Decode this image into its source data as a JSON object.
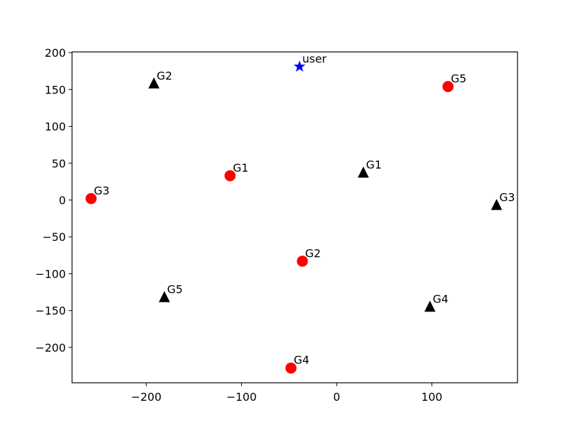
{
  "chart_data": {
    "type": "scatter",
    "xlim": [
      -278,
      190
    ],
    "ylim": [
      -248,
      201
    ],
    "xticks": [
      {
        "value": -200,
        "label": "−200"
      },
      {
        "value": -100,
        "label": "−100"
      },
      0,
      100
    ],
    "yticks": [
      200,
      150,
      100,
      50,
      0,
      {
        "value": -50,
        "label": "−50"
      },
      {
        "value": -100,
        "label": "−100"
      },
      {
        "value": -150,
        "label": "−150"
      },
      {
        "value": -200,
        "label": "−200"
      }
    ],
    "grid": false,
    "series": [
      {
        "color": "#ff0000",
        "marker": "circle",
        "x": [
          -112,
          -36,
          -258,
          -48,
          117
        ],
        "values": [
          33,
          -83,
          2,
          -228,
          154
        ],
        "labels": [
          "G1",
          "G2",
          "G3",
          "G4",
          "G5"
        ]
      },
      {
        "color": "#000000",
        "marker": "triangle",
        "x": [
          28,
          -192,
          168,
          98,
          -181
        ],
        "values": [
          37,
          158,
          -7,
          -145,
          -132
        ],
        "labels": [
          "G1",
          "G2",
          "G3",
          "G4",
          "G5"
        ]
      },
      {
        "color": "#0000ff",
        "marker": "star",
        "x": [
          -39
        ],
        "values": [
          181
        ],
        "labels": [
          "user"
        ]
      }
    ]
  }
}
